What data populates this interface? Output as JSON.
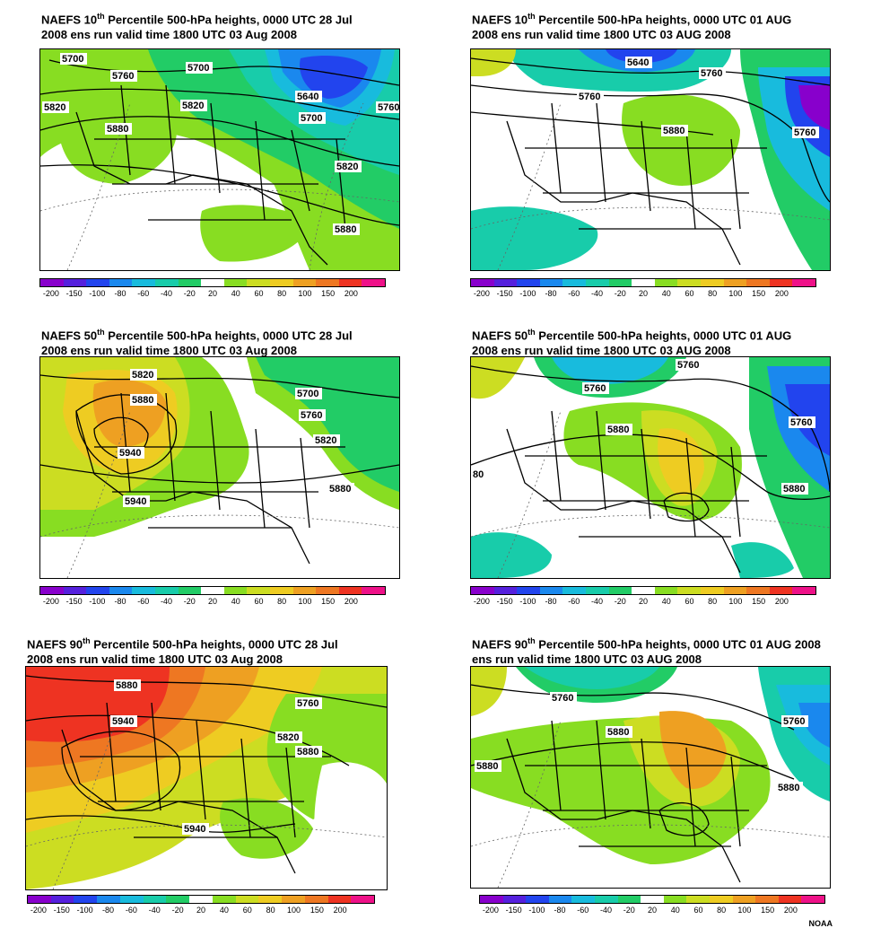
{
  "legend": {
    "ticks": [
      "-200",
      "-150",
      "-100",
      "-80",
      "-60",
      "-40",
      "-20",
      "20",
      "40",
      "60",
      "80",
      "100",
      "150",
      "200"
    ],
    "colors": [
      "#8800cc",
      "#5520dd",
      "#2244ee",
      "#1a88ee",
      "#18bbdd",
      "#18ccaa",
      "#22cc66",
      "#ffffff",
      "#88dd22",
      "#ccdd22",
      "#eecc22",
      "#eea022",
      "#ee7722",
      "#ee3322",
      "#ee1188"
    ]
  },
  "panels": [
    {
      "title_pre": "NAEFS 10",
      "title_sup": "th",
      "title_post": " Percentile 500-hPa heights, 0000 UTC  28 Jul",
      "title_line2": "2008 ens run valid time 1800 UTC  03 Aug 2008",
      "labels": [
        "5700",
        "5760",
        "5700",
        "5640",
        "5700",
        "5760",
        "5820",
        "5820",
        "5880",
        "5820",
        "5880"
      ]
    },
    {
      "title_pre": "NAEFS 10",
      "title_sup": "th",
      "title_post": " Percentile 500-hPa heights, 0000 UTC  01 AUG",
      "title_line2": "2008 ens run valid time 1800 UTC  03 AUG 2008",
      "labels": [
        "5640",
        "5760",
        "5760",
        "5880",
        "5760"
      ]
    },
    {
      "title_pre": "NAEFS 50",
      "title_sup": "th",
      "title_post": " Percentile 500-hPa heights, 0000 UTC  28 Jul",
      "title_line2": "2008 ens run valid time 1800 UTC  03 Aug 2008",
      "labels": [
        "5820",
        "5880",
        "5940",
        "5940",
        "5700",
        "5760",
        "5820",
        "5880"
      ]
    },
    {
      "title_pre": "NAEFS 50",
      "title_sup": "th",
      "title_post": " Percentile 500-hPa heights, 0000 UTC  01 AUG",
      "title_line2": "2008 ens run valid time 1800 UTC  03 AUG 2008",
      "labels": [
        "5760",
        "5760",
        "5880",
        "5760",
        "80",
        "5880"
      ]
    },
    {
      "title_pre": "NAEFS 90",
      "title_sup": "th",
      "title_post": " Percentile 500-hPa heights, 0000 UTC  28 Jul",
      "title_line2": "2008 ens run valid time 1800 UTC  03 Aug 2008",
      "labels": [
        "5880",
        "5940",
        "5760",
        "5820",
        "5880",
        "5940"
      ]
    },
    {
      "title_pre": "NAEFS 90",
      "title_sup": "th",
      "title_post": " Percentile 500-hPa heights, 0000 UTC  01 AUG 2008",
      "title_line2": "ens run valid time 1800 UTC  03 AUG 2008",
      "labels": [
        "5760",
        "5880",
        "5760",
        "5880",
        "5880"
      ]
    }
  ],
  "credit": "NOAA"
}
